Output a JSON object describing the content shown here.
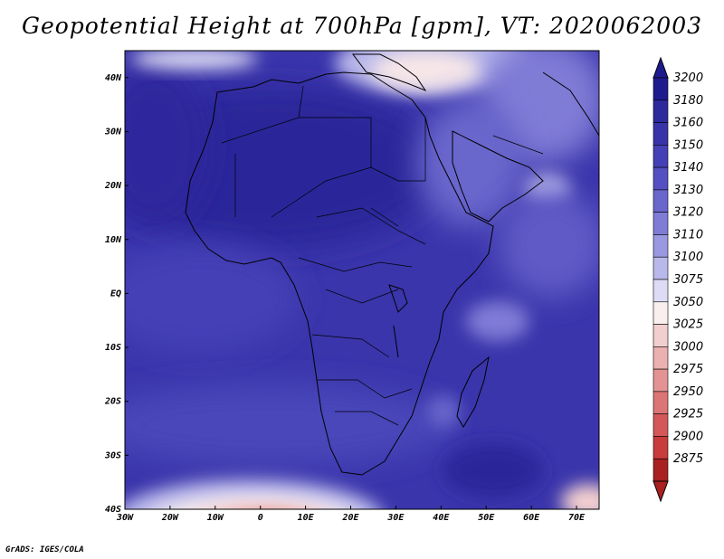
{
  "title": "Geopotential Height at 700hPa [gpm], VT: 2020062003",
  "footer": "GrADS: IGES/COLA",
  "map": {
    "lon_labels": [
      "30W",
      "20W",
      "10W",
      "0",
      "10E",
      "20E",
      "30E",
      "40E",
      "50E",
      "60E",
      "70E"
    ],
    "lat_labels": [
      "40N",
      "30N",
      "20N",
      "10N",
      "EQ",
      "10S",
      "20S",
      "30S",
      "40S"
    ],
    "lon_range": [
      -30,
      75
    ],
    "lat_range": [
      -40,
      45
    ]
  },
  "colorbar": {
    "levels": [
      "3200",
      "3180",
      "3160",
      "3150",
      "3140",
      "3130",
      "3120",
      "3110",
      "3100",
      "3075",
      "3050",
      "3025",
      "3000",
      "2975",
      "2950",
      "2925",
      "2900",
      "2875"
    ],
    "colors": [
      "#1e1b8f",
      "#2d2a9e",
      "#3833a8",
      "#4440b6",
      "#5450c2",
      "#6966cc",
      "#7f7cd6",
      "#9a98e0",
      "#b9b8ea",
      "#dedcf5",
      "#f9efef",
      "#f2cfcf",
      "#ebb0b0",
      "#e39393",
      "#dc7575",
      "#d45858",
      "#c93c3c",
      "#a82020"
    ]
  }
}
